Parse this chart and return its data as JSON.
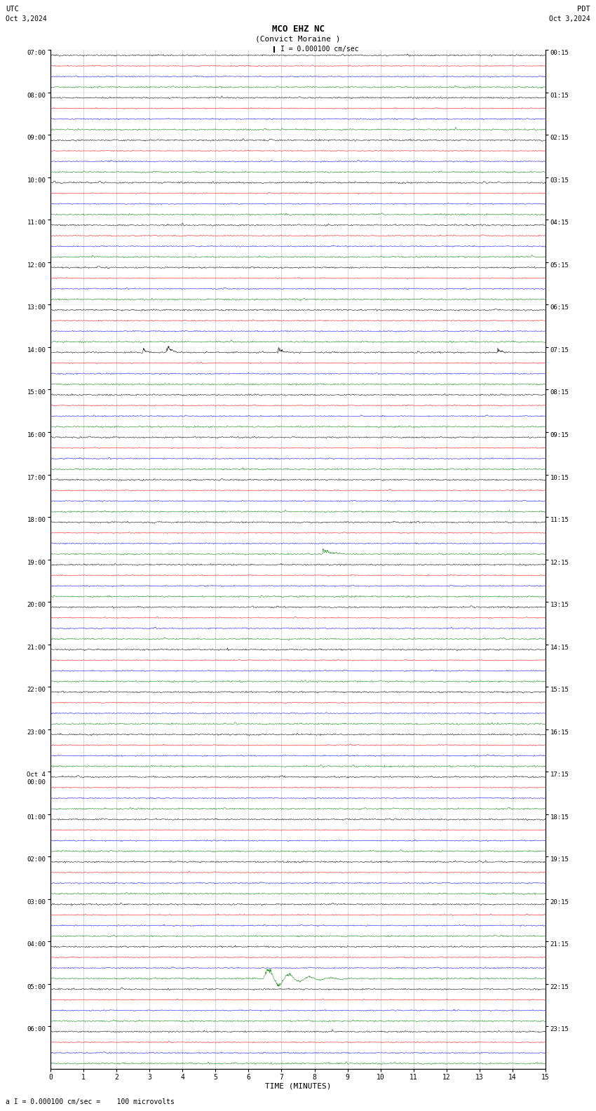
{
  "title_line1": "MCO EHZ NC",
  "title_line2": "(Convict Moraine )",
  "scale_text": "I = 0.000100 cm/sec",
  "bottom_text": "a I = 0.000100 cm/sec =    100 microvolts",
  "utc_label": "UTC",
  "utc_date": "Oct 3,2024",
  "pdt_label": "PDT",
  "pdt_date": "Oct 3,2024",
  "xlabel": "TIME (MINUTES)",
  "hour_labels_left": [
    "07:00",
    "08:00",
    "09:00",
    "10:00",
    "11:00",
    "12:00",
    "13:00",
    "14:00",
    "15:00",
    "16:00",
    "17:00",
    "18:00",
    "19:00",
    "20:00",
    "21:00",
    "22:00",
    "23:00",
    "Oct 4\n00:00",
    "01:00",
    "02:00",
    "03:00",
    "04:00",
    "05:00",
    "06:00"
  ],
  "hour_labels_right": [
    "00:15",
    "01:15",
    "02:15",
    "03:15",
    "04:15",
    "05:15",
    "06:15",
    "07:15",
    "08:15",
    "09:15",
    "10:15",
    "11:15",
    "12:15",
    "13:15",
    "14:15",
    "15:15",
    "16:15",
    "17:15",
    "18:15",
    "19:15",
    "20:15",
    "21:15",
    "22:15",
    "23:15"
  ],
  "trace_colors": [
    "black",
    "red",
    "blue",
    "green"
  ],
  "n_groups": 24,
  "traces_per_group": 4,
  "time_minutes": 15,
  "background_color": "white",
  "noise_scales": [
    0.18,
    0.12,
    0.14,
    0.18
  ],
  "trace_linewidth": 0.35,
  "trace_amplitude": 0.28
}
